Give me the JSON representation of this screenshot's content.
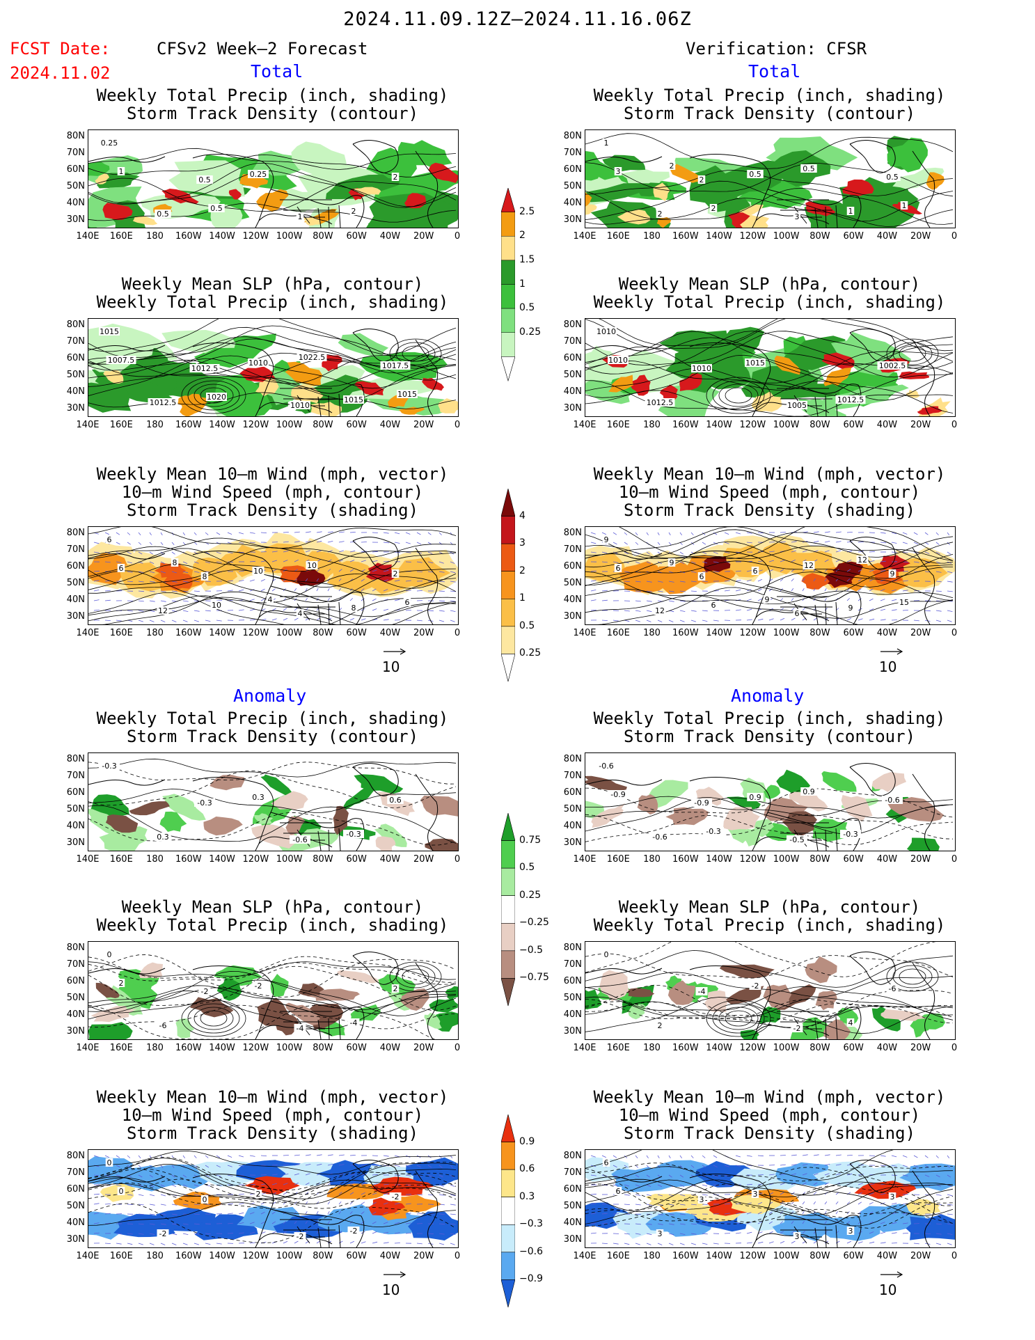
{
  "header": {
    "title": "2024.11.09.12Z–2024.11.16.06Z",
    "fcst_label": "FCST Date:",
    "fcst_date": "2024.11.02",
    "left_heading": "CFSv2 Week–2 Forecast",
    "right_heading": "Verification: CFSR"
  },
  "sections": {
    "total": "Total",
    "anomaly": "Anomaly"
  },
  "panel_titles": {
    "precip_storm": [
      "Weekly Total Precip (inch, shading)",
      "Storm Track Density (contour)"
    ],
    "slp_precip": [
      "Weekly Mean SLP (hPa, contour)",
      "Weekly Total Precip (inch, shading)"
    ],
    "wind_storm": [
      "Weekly Mean 10–m Wind (mph, vector)",
      "10–m Wind Speed (mph, contour)",
      "Storm Track Density (shading)"
    ]
  },
  "axes": {
    "lat_labels": [
      "80N",
      "70N",
      "60N",
      "50N",
      "40N",
      "30N"
    ],
    "lon_labels": [
      "140E",
      "160E",
      "180",
      "160W",
      "140W",
      "120W",
      "100W",
      "80W",
      "60W",
      "40W",
      "20W",
      "0"
    ]
  },
  "ref_vector": "10",
  "colorbars": {
    "precip_total": {
      "labels": [
        "2.5",
        "2",
        "1.5",
        "1",
        "0.5",
        "0.25"
      ],
      "colors": [
        "#d7191c",
        "#f39c12",
        "#ffe08a",
        "#2b9a2b",
        "#3cc03c",
        "#7fe07f",
        "#c8f5c0",
        "#ffffff"
      ]
    },
    "storm_total": {
      "labels": [
        "4",
        "3",
        "2",
        "1",
        "0.5",
        "0.25"
      ],
      "colors": [
        "#7a0a0a",
        "#c4161c",
        "#ec5a14",
        "#f7941d",
        "#fbbf47",
        "#fde7a0",
        "#ffffff"
      ]
    },
    "precip_anom": {
      "labels": [
        "0.75",
        "0.5",
        "0.25",
        "−0.25",
        "−0.5",
        "−0.75"
      ],
      "colors": [
        "#1e9e2a",
        "#4fce4f",
        "#a8eba0",
        "#ffffff",
        "#e8cfc4",
        "#b88e80",
        "#7a5144"
      ]
    },
    "storm_anom": {
      "labels": [
        "0.9",
        "0.6",
        "0.3",
        "−0.3",
        "−0.6",
        "−0.9"
      ],
      "colors": [
        "#e8300f",
        "#f7941d",
        "#fde68a",
        "#ffffff",
        "#c8ecfb",
        "#5aa9f0",
        "#1d5fd6"
      ]
    }
  },
  "contour_labels": {
    "p1L": [
      "0.25",
      "0.5",
      "1",
      "2",
      "0.5",
      "0.25",
      "2",
      "1",
      "0.5"
    ],
    "p1R": [
      "1",
      "2",
      "3",
      "0.5",
      "2",
      "0.5",
      "1",
      "3",
      "2",
      "0.5",
      "1",
      "2"
    ],
    "p2L": [
      "1015",
      "1012.5",
      "1010",
      "1017.5",
      "1012.5",
      "1010",
      "1015",
      "1007.5",
      "1020",
      "1022.5",
      "1015"
    ],
    "p2R": [
      "1010",
      "1010",
      "1005",
      "1002.5",
      "1012.5",
      "1015",
      "1012.5",
      "1010"
    ],
    "p3L": [
      "6",
      "8",
      "4",
      "2",
      "12",
      "10",
      "8",
      "6",
      "10",
      "10",
      "6",
      "8",
      "4"
    ],
    "p3R": [
      "9",
      "6",
      "6",
      "9",
      "12",
      "6",
      "9",
      "6",
      "6",
      "12",
      "15",
      "9",
      "9",
      "12"
    ],
    "p4L": [
      "-0.3",
      "-0.3",
      "-0.6",
      "0.6",
      "0.3",
      "0.3",
      "-0.3"
    ],
    "p4R": [
      "-0.6",
      "-0.9",
      "-0.5",
      "-0.6",
      "-0.6",
      "0.9",
      "-0.3",
      "-0.9",
      "-0.3",
      "0.9"
    ],
    "p5L": [
      "0",
      "-2",
      "-4",
      "2",
      "-6",
      "-2",
      "-4",
      "2"
    ],
    "p5R": [
      "0",
      "-4",
      "-2",
      "-6",
      "2",
      "-2",
      "4"
    ],
    "p6L": [
      "0",
      "0",
      "-2",
      "-2",
      "-2",
      "2",
      "-2",
      "0"
    ],
    "p6R": [
      "6",
      "3",
      "3",
      "3",
      "3",
      "3",
      "3",
      "6"
    ]
  }
}
